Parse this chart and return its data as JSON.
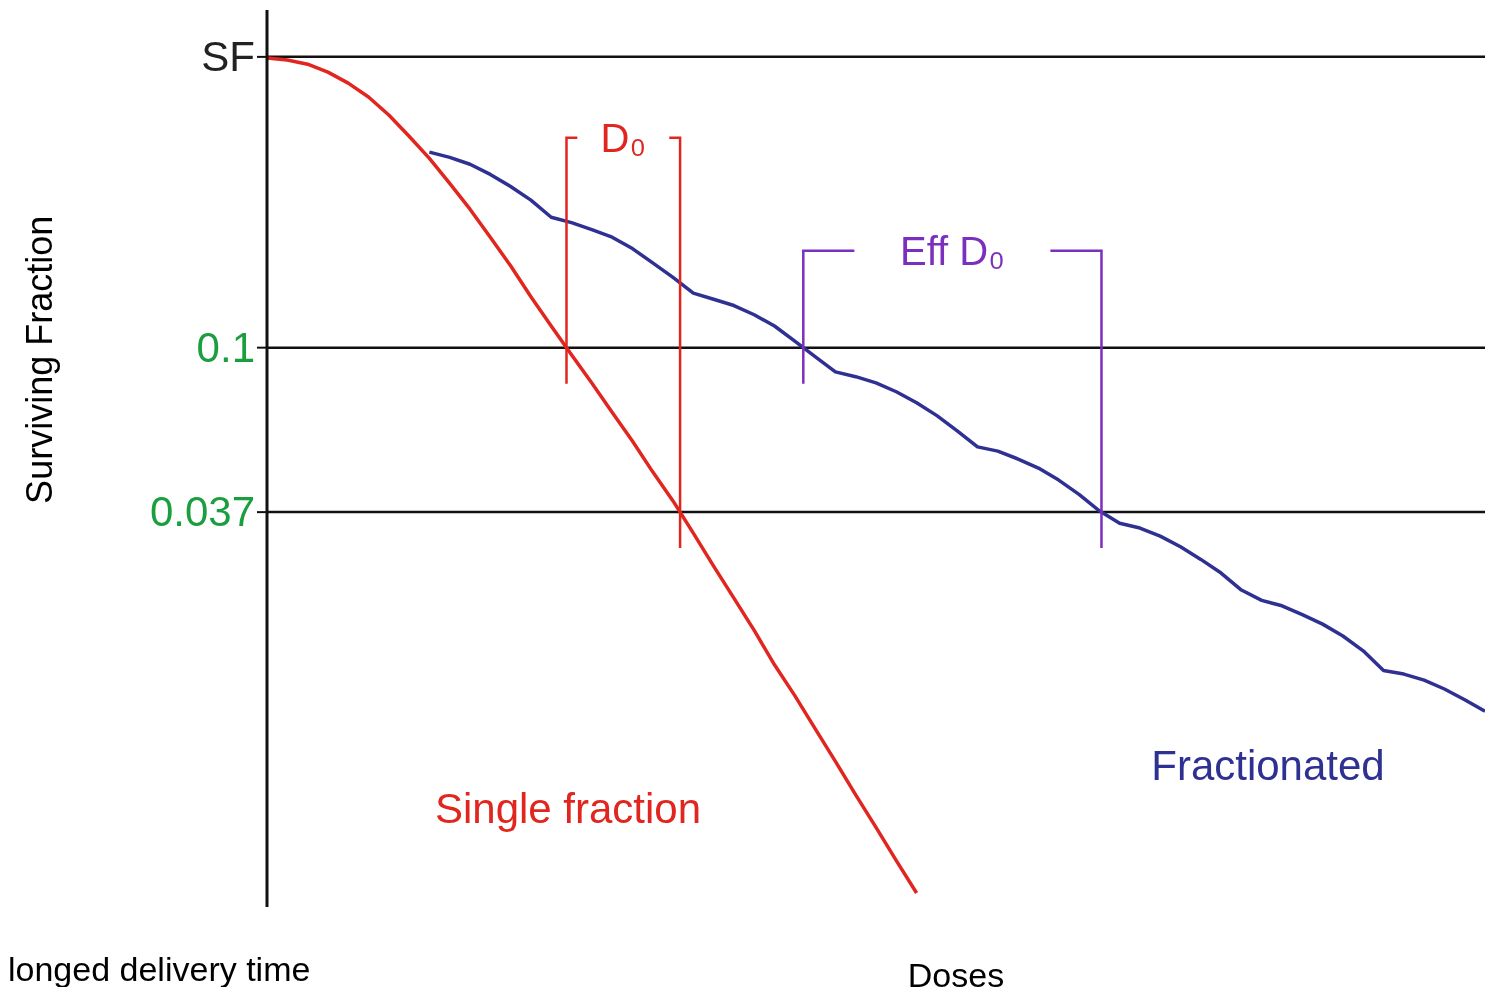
{
  "chart_data": {
    "type": "line",
    "xlabel": "Doses",
    "ylabel": "Surviving Fraction",
    "categories": [
      null,
      null,
      null,
      null,
      null,
      null,
      null,
      null,
      null,
      null,
      null,
      null,
      null,
      null,
      null,
      null,
      null,
      null,
      null,
      null,
      null,
      null,
      null,
      null,
      null,
      null,
      null,
      null,
      null,
      null,
      null,
      null,
      null,
      null,
      null,
      null,
      null,
      null,
      null,
      null,
      null,
      null,
      null,
      null,
      null,
      null,
      null,
      null,
      null,
      null,
      null,
      null,
      null,
      null,
      null,
      null,
      null,
      null,
      null,
      null,
      null
    ],
    "series": [
      {
        "name": "Single fraction",
        "color": "#e0261e",
        "values": [
          0.576,
          0.569,
          0.555,
          0.529,
          0.495,
          0.455,
          0.408,
          0.359,
          0.314,
          0.27,
          0.231,
          0.195,
          0.164,
          0.136,
          0.114,
          0.0958,
          0.0808,
          0.0677,
          0.0569,
          0.0472,
          0.0396,
          0.0326,
          0.0267,
          0.022,
          0.0181,
          0.0147,
          0.0122,
          0.01,
          0.0082,
          0.0067,
          0.0055,
          0.0045,
          0.0037,
          null,
          null,
          null,
          null,
          null,
          null,
          null,
          null,
          null,
          null,
          null,
          null,
          null,
          null,
          null,
          null,
          null,
          null,
          null,
          null,
          null,
          null,
          null,
          null,
          null,
          null,
          null,
          null
        ]
      },
      {
        "name": "Fractionated",
        "color": "#2e3192",
        "values": [
          null,
          null,
          null,
          null,
          null,
          null,
          null,
          null,
          0.326,
          0.316,
          0.303,
          0.285,
          0.265,
          0.244,
          0.22,
          0.213,
          0.204,
          0.195,
          0.182,
          0.167,
          0.153,
          0.139,
          0.134,
          0.129,
          0.122,
          0.114,
          0.104,
          0.0947,
          0.0864,
          0.0839,
          0.0808,
          0.0766,
          0.0717,
          0.0663,
          0.0605,
          0.0549,
          0.0535,
          0.051,
          0.0483,
          0.0449,
          0.0412,
          0.0373,
          0.0346,
          0.0336,
          0.032,
          0.03,
          0.0278,
          0.0256,
          0.0231,
          0.0217,
          0.021,
          0.0199,
          0.0188,
          0.0175,
          0.016,
          0.0142,
          0.0139,
          0.0134,
          0.0127,
          0.0119,
          0.0111
        ]
      }
    ],
    "log": "y",
    "ylim": [
      0.0034,
      0.77
    ],
    "yticks": [
      {
        "value": 0.58,
        "label": "SF"
      },
      0.1,
      0.037
    ],
    "grid": "y",
    "legend": false,
    "tick_labels": "y",
    "annotations": [
      "D₀",
      "Eff D₀",
      "longed delivery time"
    ]
  }
}
